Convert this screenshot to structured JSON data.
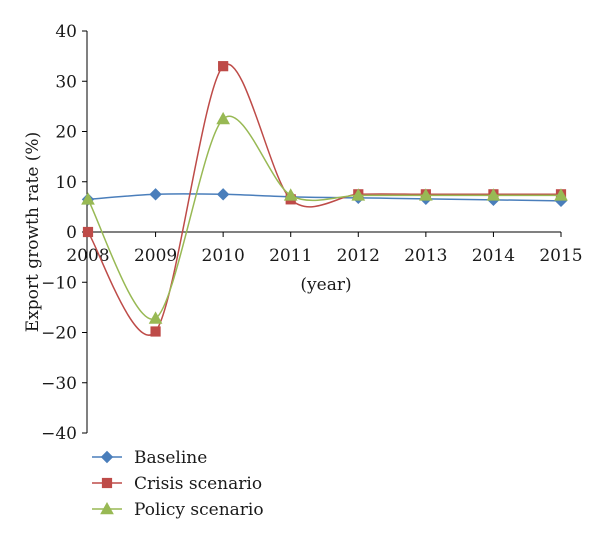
{
  "chart_data": {
    "type": "line",
    "title": "",
    "xlabel": "(year)",
    "ylabel": "Export growth rate (%)",
    "x": [
      "2008",
      "2009",
      "2010",
      "2011",
      "2012",
      "2013",
      "2014",
      "2015"
    ],
    "ylim": [
      -40,
      40
    ],
    "yticks": [
      -40,
      -30,
      -20,
      -10,
      0,
      10,
      20,
      30,
      40
    ],
    "ytick_labels": [
      "−40",
      "−30",
      "−20",
      "−10",
      "0",
      "10",
      "20",
      "30",
      "40"
    ],
    "grid": false,
    "smooth": true,
    "legend_position": "bottom-left",
    "series": [
      {
        "name": "Baseline",
        "color": "#4a7ebb",
        "marker": "diamond",
        "values": [
          6.5,
          7.5,
          7.5,
          7.0,
          6.8,
          6.6,
          6.4,
          6.2
        ]
      },
      {
        "name": "Crisis scenario",
        "color": "#be4b48",
        "marker": "square",
        "values": [
          0.0,
          -19.8,
          33.0,
          6.5,
          7.5,
          7.5,
          7.5,
          7.5
        ]
      },
      {
        "name": "Policy scenario",
        "color": "#98b954",
        "marker": "triangle",
        "values": [
          6.5,
          -17.2,
          22.5,
          7.3,
          7.3,
          7.3,
          7.3,
          7.3
        ]
      }
    ]
  }
}
